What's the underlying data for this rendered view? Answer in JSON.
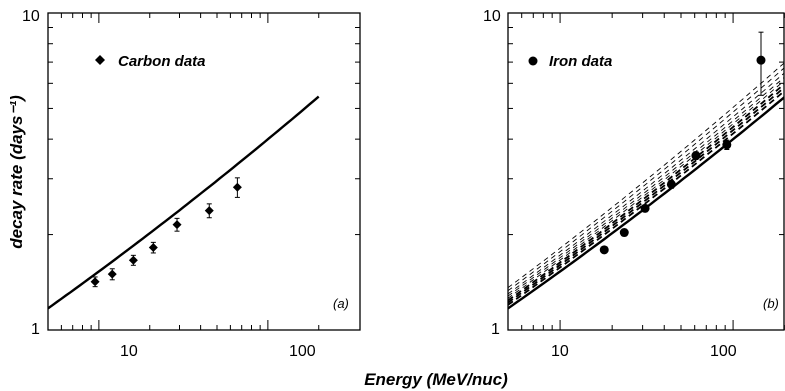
{
  "chart_data": [
    {
      "type": "scatter",
      "panel_label": "(a)",
      "xscale": "log",
      "yscale": "log",
      "xlim": [
        5,
        200
      ],
      "ylim": [
        1,
        10
      ],
      "x_ticks": [
        10,
        100
      ],
      "y_ticks": [
        1,
        10
      ],
      "x_tick_labels": [
        "10",
        "100"
      ],
      "y_tick_labels": [
        "1",
        "10"
      ],
      "ylabel": "decay rate (days⁻¹)",
      "legend_position": "top-left",
      "series": [
        {
          "name": "Carbon data",
          "marker": "diamond",
          "x": [
            9.5,
            12,
            16,
            21,
            29,
            45,
            66
          ],
          "y": [
            1.42,
            1.5,
            1.66,
            1.82,
            2.15,
            2.38,
            2.82
          ],
          "err": [
            0.05,
            0.06,
            0.06,
            0.07,
            0.1,
            0.12,
            0.2
          ]
        }
      ],
      "curves": [
        {
          "style": "solid-thick",
          "x": [
            5,
            200
          ],
          "y": [
            1.17,
            5.45
          ]
        }
      ]
    },
    {
      "type": "scatter",
      "panel_label": "(b)",
      "xscale": "log",
      "yscale": "log",
      "xlim": [
        5,
        200
      ],
      "ylim": [
        1,
        10
      ],
      "x_ticks": [
        10,
        100
      ],
      "y_ticks": [
        1,
        10
      ],
      "x_tick_labels": [
        "10",
        "100"
      ],
      "y_tick_labels": [
        "1",
        "10"
      ],
      "legend_position": "top-left",
      "series": [
        {
          "name": "Iron data",
          "marker": "circle",
          "x": [
            18,
            23.5,
            31,
            44,
            61,
            92,
            145
          ],
          "y": [
            1.79,
            2.03,
            2.42,
            2.88,
            3.55,
            3.84,
            7.1
          ],
          "err": [
            0.04,
            0.05,
            0.06,
            0.08,
            0.1,
            0.13,
            1.6
          ]
        }
      ],
      "curves": [
        {
          "style": "solid-thick",
          "x": [
            5,
            200
          ],
          "y": [
            1.17,
            5.45
          ]
        },
        {
          "style": "dashed-thick",
          "x": [
            5,
            200
          ],
          "y": [
            1.2,
            5.7
          ]
        },
        {
          "style": "dashed-thick",
          "x": [
            5,
            200
          ],
          "y": [
            1.22,
            5.85
          ]
        },
        {
          "style": "dashed-thick",
          "x": [
            5,
            200
          ],
          "y": [
            1.24,
            6.0
          ]
        },
        {
          "style": "dashed-thin",
          "x": [
            5,
            200
          ],
          "y": [
            1.26,
            6.15
          ]
        },
        {
          "style": "dashed-thin",
          "x": [
            5,
            200
          ],
          "y": [
            1.28,
            6.3
          ]
        },
        {
          "style": "dashed-thin",
          "x": [
            5,
            200
          ],
          "y": [
            1.3,
            6.5
          ]
        },
        {
          "style": "dashed-thin",
          "x": [
            5,
            200
          ],
          "y": [
            1.33,
            6.75
          ]
        },
        {
          "style": "dashed-thin",
          "x": [
            5,
            200
          ],
          "y": [
            1.36,
            7.0
          ]
        }
      ]
    }
  ],
  "shared_xlabel": "Energy (MeV/nuc)"
}
